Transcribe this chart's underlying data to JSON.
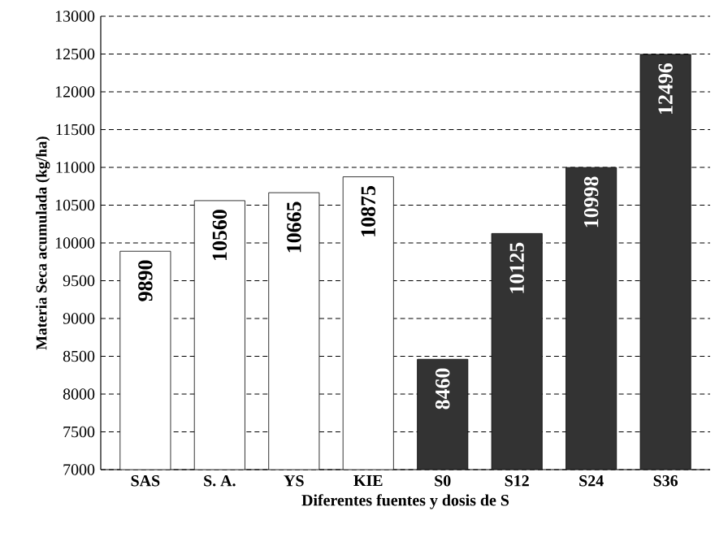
{
  "chart_data": {
    "type": "bar",
    "xlabel": "Diferentes fuentes y dosis de S",
    "ylabel": "Materia Seca acumulada (kg/ha)",
    "categories": [
      "SAS",
      "S. A.",
      "YS",
      "KIE",
      "S0",
      "S12",
      "S24",
      "S36"
    ],
    "values": [
      9890,
      10560,
      10665,
      10875,
      8460,
      10125,
      10998,
      12496
    ],
    "colors": [
      "#ffffff",
      "#ffffff",
      "#ffffff",
      "#ffffff",
      "#333333",
      "#333333",
      "#333333",
      "#333333"
    ],
    "ylim": [
      7000,
      13000
    ],
    "yticks": [
      7000,
      7500,
      8000,
      8500,
      9000,
      9500,
      10000,
      10500,
      11000,
      11500,
      12000,
      12500,
      13000
    ],
    "grid": "y",
    "data_labels": true
  }
}
